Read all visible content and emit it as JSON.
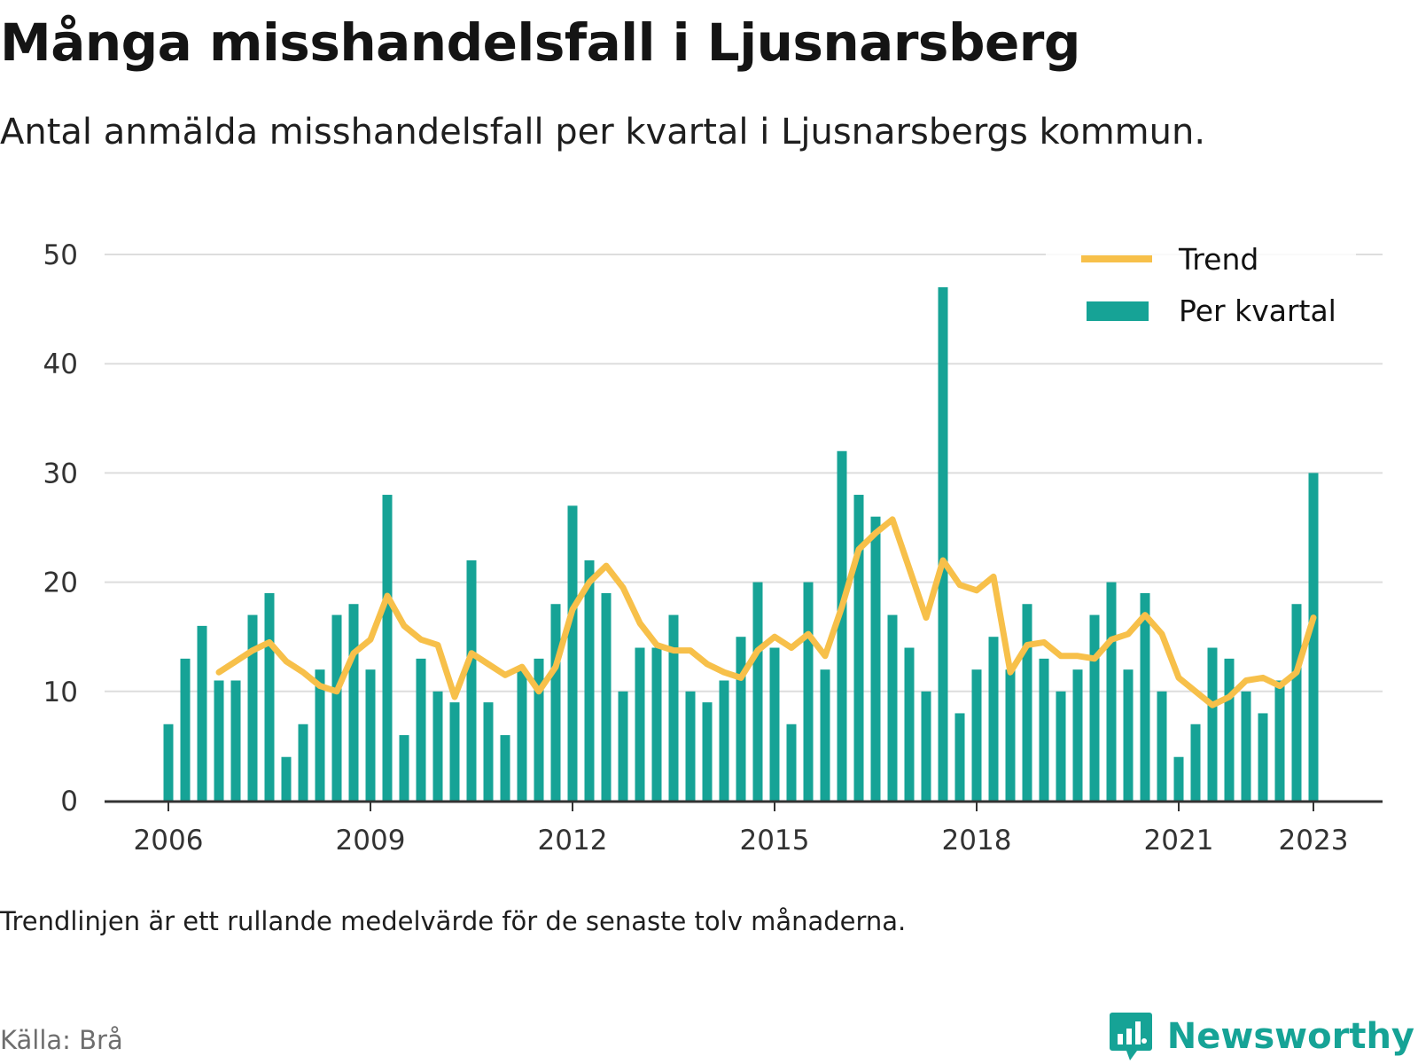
{
  "title": "Många misshandelsfall i Ljusnarsberg",
  "subtitle": "Antal anmälda misshandelsfall per kvartal i Ljusnarsbergs kommun.",
  "note": "Trendlinjen är ett rullande medelvärde för de senaste tolv månaderna.",
  "source": "Källa: Brå",
  "brand": {
    "name": "Newsworthy",
    "icon": "newsworthy-logo-icon"
  },
  "colors": {
    "bar": "#16a396",
    "trend": "#f7c04a",
    "grid": "#dddddd",
    "axis": "#333333"
  },
  "chart_data": {
    "type": "bar",
    "x_axis": {
      "ticks": [
        "2006",
        "2009",
        "2012",
        "2015",
        "2018",
        "2021",
        "2023"
      ]
    },
    "y_axis": {
      "min": 0,
      "max": 50,
      "ticks": [
        0,
        10,
        20,
        30,
        40,
        50
      ]
    },
    "grid": true,
    "legend": {
      "position": "top-right",
      "items": [
        {
          "label": "Trend",
          "type": "line"
        },
        {
          "label": "Per kvartal",
          "type": "bar"
        }
      ]
    },
    "categories": [
      "2006-Q1",
      "2006-Q2",
      "2006-Q3",
      "2006-Q4",
      "2007-Q1",
      "2007-Q2",
      "2007-Q3",
      "2007-Q4",
      "2008-Q1",
      "2008-Q2",
      "2008-Q3",
      "2008-Q4",
      "2009-Q1",
      "2009-Q2",
      "2009-Q3",
      "2009-Q4",
      "2010-Q1",
      "2010-Q2",
      "2010-Q3",
      "2010-Q4",
      "2011-Q1",
      "2011-Q2",
      "2011-Q3",
      "2011-Q4",
      "2012-Q1",
      "2012-Q2",
      "2012-Q3",
      "2012-Q4",
      "2013-Q1",
      "2013-Q2",
      "2013-Q3",
      "2013-Q4",
      "2014-Q1",
      "2014-Q2",
      "2014-Q3",
      "2014-Q4",
      "2015-Q1",
      "2015-Q2",
      "2015-Q3",
      "2015-Q4",
      "2016-Q1",
      "2016-Q2",
      "2016-Q3",
      "2016-Q4",
      "2017-Q1",
      "2017-Q2",
      "2017-Q3",
      "2017-Q4",
      "2018-Q1",
      "2018-Q2",
      "2018-Q3",
      "2018-Q4",
      "2019-Q1",
      "2019-Q2",
      "2019-Q3",
      "2019-Q4",
      "2020-Q1",
      "2020-Q2",
      "2020-Q3",
      "2020-Q4",
      "2021-Q1",
      "2021-Q2",
      "2021-Q3",
      "2021-Q4",
      "2022-Q1",
      "2022-Q2",
      "2022-Q3",
      "2022-Q4",
      "2023-Q1"
    ],
    "series": [
      {
        "name": "Per kvartal",
        "type": "bar",
        "values": [
          7,
          13,
          16,
          11,
          11,
          17,
          19,
          4,
          7,
          12,
          17,
          18,
          12,
          28,
          6,
          13,
          10,
          9,
          22,
          9,
          6,
          12,
          13,
          18,
          27,
          22,
          19,
          10,
          14,
          14,
          17,
          10,
          9,
          11,
          15,
          20,
          14,
          7,
          20,
          12,
          32,
          28,
          26,
          17,
          14,
          10,
          47,
          8,
          12,
          15,
          12,
          18,
          13,
          10,
          12,
          17,
          20,
          12,
          19,
          10,
          4,
          7,
          14,
          13,
          10,
          8,
          11,
          18,
          30
        ]
      },
      {
        "name": "Trend",
        "type": "line",
        "values": [
          null,
          null,
          null,
          11.75,
          12.75,
          13.75,
          14.5,
          12.75,
          11.75,
          10.5,
          10.0,
          13.5,
          14.75,
          18.75,
          16.0,
          14.75,
          14.25,
          9.5,
          13.5,
          12.5,
          11.5,
          12.25,
          10.0,
          12.25,
          17.5,
          20.0,
          21.5,
          19.5,
          16.25,
          14.25,
          13.75,
          13.75,
          12.5,
          11.75,
          11.25,
          13.75,
          15.0,
          14.0,
          15.25,
          13.25,
          17.75,
          23.0,
          24.5,
          25.75,
          21.25,
          16.75,
          22.0,
          19.75,
          19.25,
          20.5,
          11.75,
          14.25,
          14.5,
          13.25,
          13.25,
          13.0,
          14.75,
          15.25,
          17.0,
          15.25,
          11.25,
          10.0,
          8.75,
          9.5,
          11.0,
          11.25,
          10.5,
          11.75,
          16.75
        ]
      }
    ]
  }
}
